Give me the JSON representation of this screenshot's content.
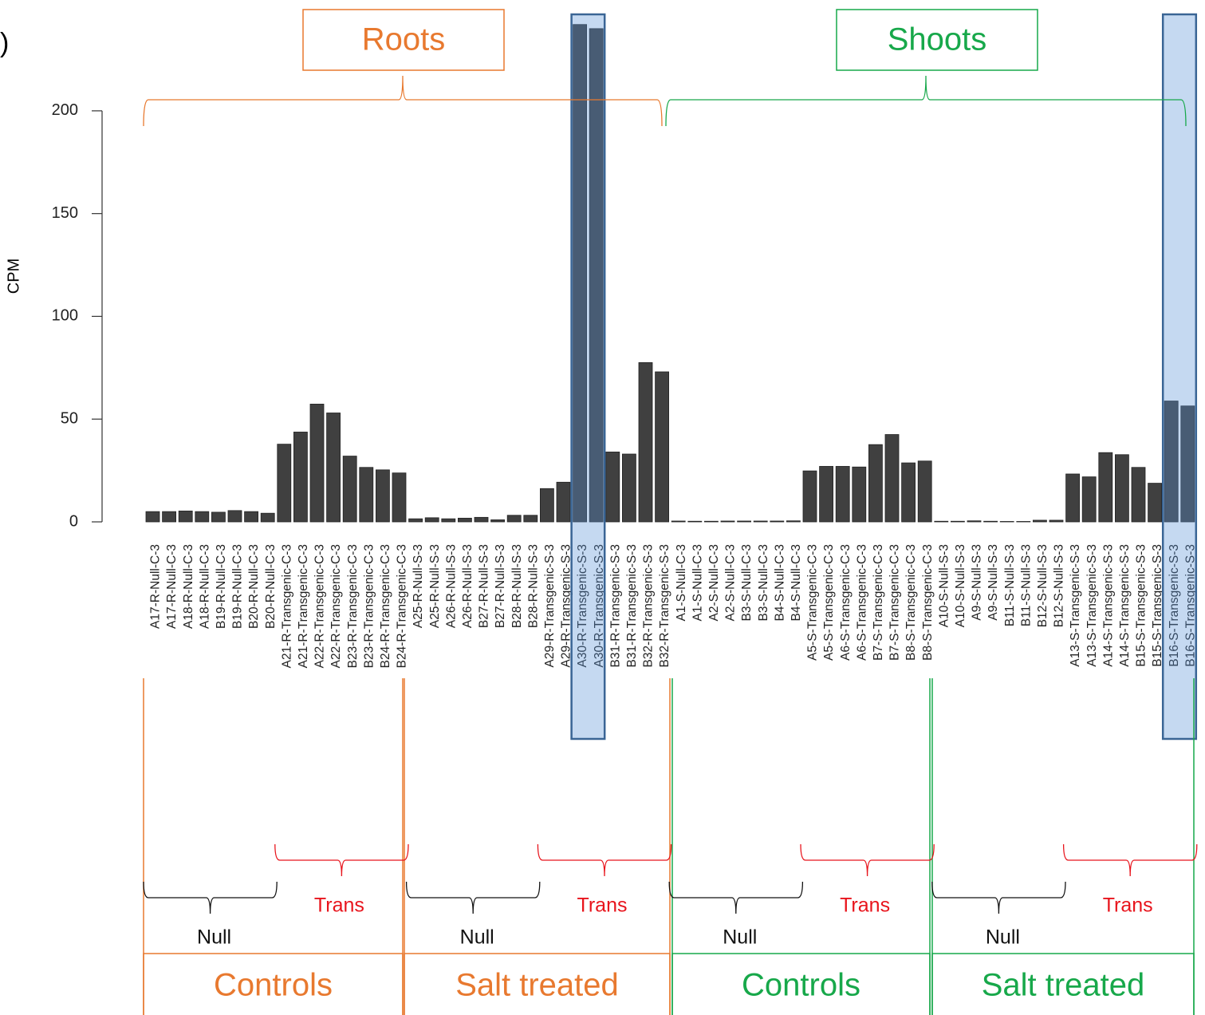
{
  "chart_data": {
    "type": "bar",
    "panel_label": ")",
    "y_label": "CPM",
    "categories": [
      "A17-R-Null-C-3",
      "A17-R-Null-C-3",
      "A18-R-Null-C-3",
      "A18-R-Null-C-3",
      "B19-R-Null-C-3",
      "B19-R-Null-C-3",
      "B20-R-Null-C-3",
      "B20-R-Null-C-3",
      "A21-R-Transgenic-C-3",
      "A21-R-Transgenic-C-3",
      "A22-R-Transgenic-C-3",
      "A22-R-Transgenic-C-3",
      "B23-R-Transgenic-C-3",
      "B23-R-Transgenic-C-3",
      "B24-R-Transgenic-C-3",
      "B24-R-Transgenic-C-3",
      "A25-R-Null-S-3",
      "A25-R-Null-S-3",
      "A26-R-Null-S-3",
      "A26-R-Null-S-3",
      "B27-R-Null-S-3",
      "B27-R-Null-S-3",
      "B28-R-Null-S-3",
      "B28-R-Null-S-3",
      "A29-R-Transgenic-S-3",
      "A29-R-Transgenic-S-3",
      "A30-R-Transgenic-S-3",
      "A30-R-Transgenic-S-3",
      "B31-R-Transgenic-S-3",
      "B31-R-Transgenic-S-3",
      "B32-R-Transgenic-S-3",
      "B32-R-Transgenic-S-3",
      "A1-S-Null-C-3",
      "A1-S-Null-C-3",
      "A2-S-Null-C-3",
      "A2-S-Null-C-3",
      "B3-S-Null-C-3",
      "B3-S-Null-C-3",
      "B4-S-Null-C-3",
      "B4-S-Null-C-3",
      "A5-S-Transgenic-C-3",
      "A5-S-Transgenic-C-3",
      "A6-S-Transgenic-C-3",
      "A6-S-Transgenic-C-3",
      "B7-S-Transgenic-C-3",
      "B7-S-Transgenic-C-3",
      "B8-S-Transgenic-C-3",
      "B8-S-Transgenic-C-3",
      "A10-S-Null-S-3",
      "A10-S-Null-S-3",
      "A9-S-Null-S-3",
      "A9-S-Null-S-3",
      "B11-S-Null-S-3",
      "B11-S-Null-S-3",
      "B12-S-Null-S-3",
      "B12-S-Null-S-3",
      "A13-S-Transgenic-S-3",
      "A13-S-Transgenic-S-3",
      "A14-S-Transgenic-S-3",
      "A14-S-Transgenic-S-3",
      "B15-S-Transgenic-S-3",
      "B15-S-Transgenic-S-3",
      "B16-S-Transgenic-S-3",
      "B16-S-Transgenic-S-3"
    ],
    "values": [
      5,
      5,
      5.3,
      5,
      4.7,
      5.5,
      5,
      4.2,
      37.8,
      43.7,
      57.3,
      53,
      32,
      26.5,
      25.3,
      23.8,
      1.5,
      2,
      1.5,
      1.8,
      2.2,
      1,
      3.2,
      3.2,
      16.2,
      19.3,
      242,
      240,
      34,
      33,
      77.5,
      73,
      0.4,
      0.3,
      0.3,
      0.4,
      0.4,
      0.4,
      0.4,
      0.5,
      24.8,
      27,
      27,
      26.7,
      37.6,
      42.5,
      28.7,
      29.6,
      0.3,
      0.3,
      0.5,
      0.3,
      0.2,
      0.2,
      0.8,
      0.8,
      23.3,
      21.9,
      33.7,
      32.7,
      26.5,
      18.8,
      58.8,
      56.4
    ],
    "color": "#404040",
    "ylim": [
      0,
      245
    ],
    "yticks": [
      0,
      50,
      100,
      150,
      200
    ],
    "tissues": [
      "Roots",
      "Shoots"
    ],
    "treatments": [
      "Controls",
      "Salt treated",
      "Controls",
      "Salt treated"
    ],
    "genotypes": [
      "Null",
      "Trans",
      "Null",
      "Trans",
      "Null",
      "Trans",
      "Null",
      "Trans"
    ]
  }
}
